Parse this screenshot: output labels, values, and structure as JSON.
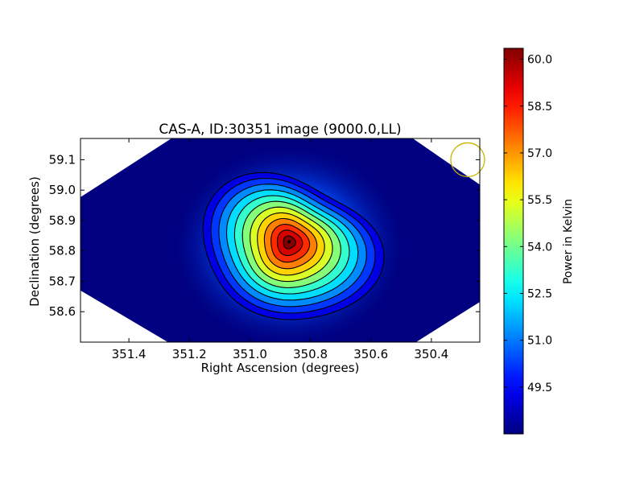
{
  "chart_data": {
    "type": "heatmap",
    "title": "CAS-A, ID:30351 image (9000.0,LL)",
    "xlabel": "Right Ascension (degrees)",
    "ylabel": "Declination (degrees)",
    "xlim": [
      351.56,
      350.24
    ],
    "ylim": [
      58.5,
      59.17
    ],
    "x_axis_inverted": true,
    "x_ticks": [
      351.4,
      351.2,
      351.0,
      350.8,
      350.6,
      350.4
    ],
    "x_tick_labels": [
      "351.4",
      "351.2",
      "351.0",
      "350.8",
      "350.6",
      "350.4"
    ],
    "y_ticks": [
      58.6,
      58.7,
      58.8,
      58.9,
      59.0,
      59.1
    ],
    "y_tick_labels": [
      "58.6",
      "58.7",
      "58.8",
      "58.9",
      "59.0",
      "59.1"
    ],
    "colormap": "jet",
    "colorbar": {
      "label": "Power in Kelvin",
      "range": [
        48.0,
        60.35
      ],
      "ticks": [
        49.5,
        51.0,
        52.5,
        54.0,
        55.5,
        57.0,
        58.5,
        60.0
      ],
      "tick_labels": [
        "49.5",
        "51.0",
        "52.5",
        "54.0",
        "55.5",
        "57.0",
        "58.5",
        "60.0"
      ]
    },
    "peak": {
      "ra": 350.87,
      "dec": 58.83,
      "value": 60.3
    },
    "background_value": 48.0,
    "contours": true,
    "contour_color": "#000000",
    "beam_marker": {
      "ra": 350.28,
      "dec": 59.1,
      "color": "#c8b400"
    },
    "coverage_shape": "diamond",
    "grid": false
  }
}
